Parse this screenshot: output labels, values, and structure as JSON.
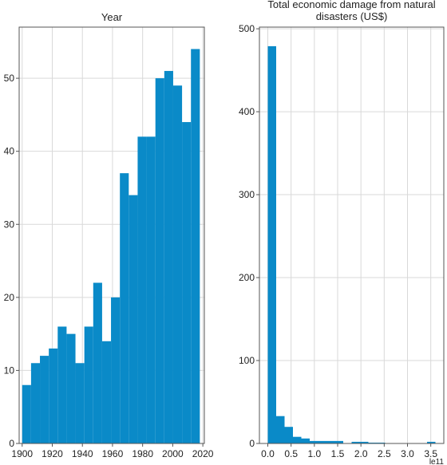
{
  "chart_data": [
    {
      "type": "bar",
      "subtype": "histogram",
      "title": "Year",
      "xlabel": "",
      "ylabel": "",
      "color": "#0a8ac8",
      "bin_edges": [
        1900,
        1905.9,
        1911.8,
        1917.7,
        1923.6,
        1929.5,
        1935.4,
        1941.3,
        1947.2,
        1953.1,
        1959.0,
        1964.9,
        1970.8,
        1976.7,
        1982.6,
        1988.5,
        1994.4,
        2000.3,
        2006.2,
        2012.1,
        2018.0
      ],
      "values": [
        8,
        11,
        12,
        13,
        16,
        15,
        11,
        16,
        22,
        14,
        20,
        37,
        34,
        42,
        42,
        50,
        51,
        49,
        44,
        54
      ],
      "xlim": [
        1898,
        2021
      ],
      "ylim": [
        0,
        57
      ],
      "xticks": [
        "1900",
        "1920",
        "1940",
        "1960",
        "1980",
        "2000",
        "2020"
      ],
      "xtick_values": [
        1900,
        1920,
        1940,
        1960,
        1980,
        2000,
        2020
      ],
      "yticks": [
        "0",
        "10",
        "20",
        "30",
        "40",
        "50"
      ],
      "ytick_values": [
        0,
        10,
        20,
        30,
        40,
        50
      ],
      "grid": true
    },
    {
      "type": "bar",
      "subtype": "histogram",
      "title": "Total economic damage from natural disasters (US$)",
      "title_lines": [
        "Total economic damage from natural",
        "disasters (US$)"
      ],
      "xlabel": "",
      "ylabel": "",
      "x_offset_label": "le11",
      "color": "#0a8ac8",
      "bin_edges": [
        0.0,
        0.18,
        0.36,
        0.54,
        0.72,
        0.9,
        1.08,
        1.26,
        1.44,
        1.62,
        1.8,
        1.98,
        2.16,
        2.34,
        2.52,
        2.7,
        2.88,
        3.06,
        3.24,
        3.42,
        3.6
      ],
      "values": [
        479,
        33,
        20,
        8,
        6,
        3,
        3,
        3,
        3,
        0,
        2,
        2,
        1,
        1,
        0,
        0,
        0,
        0,
        0,
        2
      ],
      "xlim": [
        -0.18,
        3.78
      ],
      "ylim": [
        0,
        502
      ],
      "xticks": [
        "0.0",
        "0.5",
        "1.0",
        "1.5",
        "2.0",
        "2.5",
        "3.0",
        "3.5"
      ],
      "xtick_values": [
        0.0,
        0.5,
        1.0,
        1.5,
        2.0,
        2.5,
        3.0,
        3.5
      ],
      "yticks": [
        "0",
        "100",
        "200",
        "300",
        "400",
        "500"
      ],
      "ytick_values": [
        0,
        100,
        200,
        300,
        400,
        500
      ],
      "grid": true
    }
  ]
}
